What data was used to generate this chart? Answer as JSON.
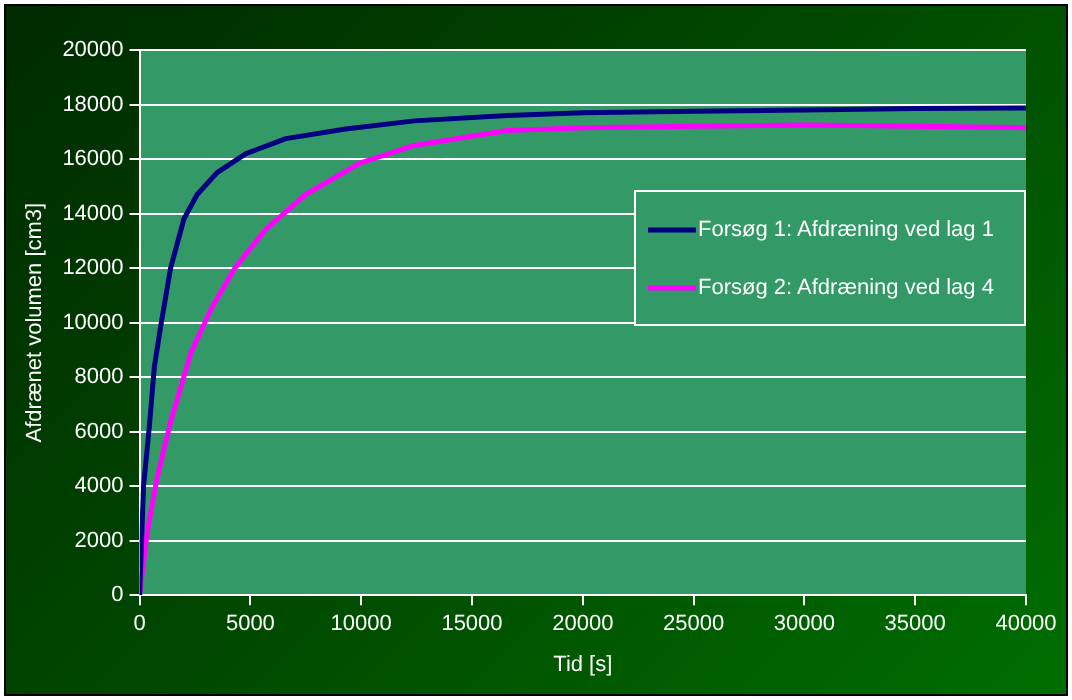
{
  "chart_data": {
    "type": "line",
    "xlabel": "Tid [s]",
    "ylabel": "Afdrænet volumen [cm3]",
    "xlim": [
      0,
      40000
    ],
    "xticks": [
      0,
      5000,
      10000,
      15000,
      20000,
      25000,
      30000,
      35000,
      40000
    ],
    "ylim": [
      0,
      20000
    ],
    "yticks": [
      0,
      2000,
      4000,
      6000,
      8000,
      10000,
      12000,
      14000,
      16000,
      18000,
      20000
    ],
    "grid": "y",
    "legend": "right",
    "marker": "none",
    "line_style": "solid",
    "series": [
      {
        "name": "Forsøg 1: Afdræning ved lag 1",
        "color": "#000080",
        "x": [
          0,
          180,
          430,
          670,
          980,
          1400,
          2000,
          2600,
          3500,
          4800,
          6600,
          9300,
          12400,
          16600,
          20000,
          25000,
          30000,
          35000,
          40000
        ],
        "values": [
          0,
          4000,
          6100,
          8400,
          10000,
          12000,
          13800,
          14700,
          15500,
          16200,
          16750,
          17100,
          17400,
          17600,
          17700,
          17750,
          17800,
          17850,
          17870
        ]
      },
      {
        "name": "Forsøg 2: Afdræning ved lag 4",
        "color": "#ff00ff",
        "x": [
          0,
          335,
          790,
          1400,
          2320,
          3230,
          4300,
          5670,
          7500,
          9940,
          12400,
          16600,
          20000,
          25000,
          30000,
          35000,
          40000
        ],
        "values": [
          0,
          2260,
          4300,
          6360,
          8900,
          10500,
          12000,
          13400,
          14700,
          15850,
          16500,
          17050,
          17150,
          17200,
          17250,
          17200,
          17150
        ]
      }
    ]
  }
}
